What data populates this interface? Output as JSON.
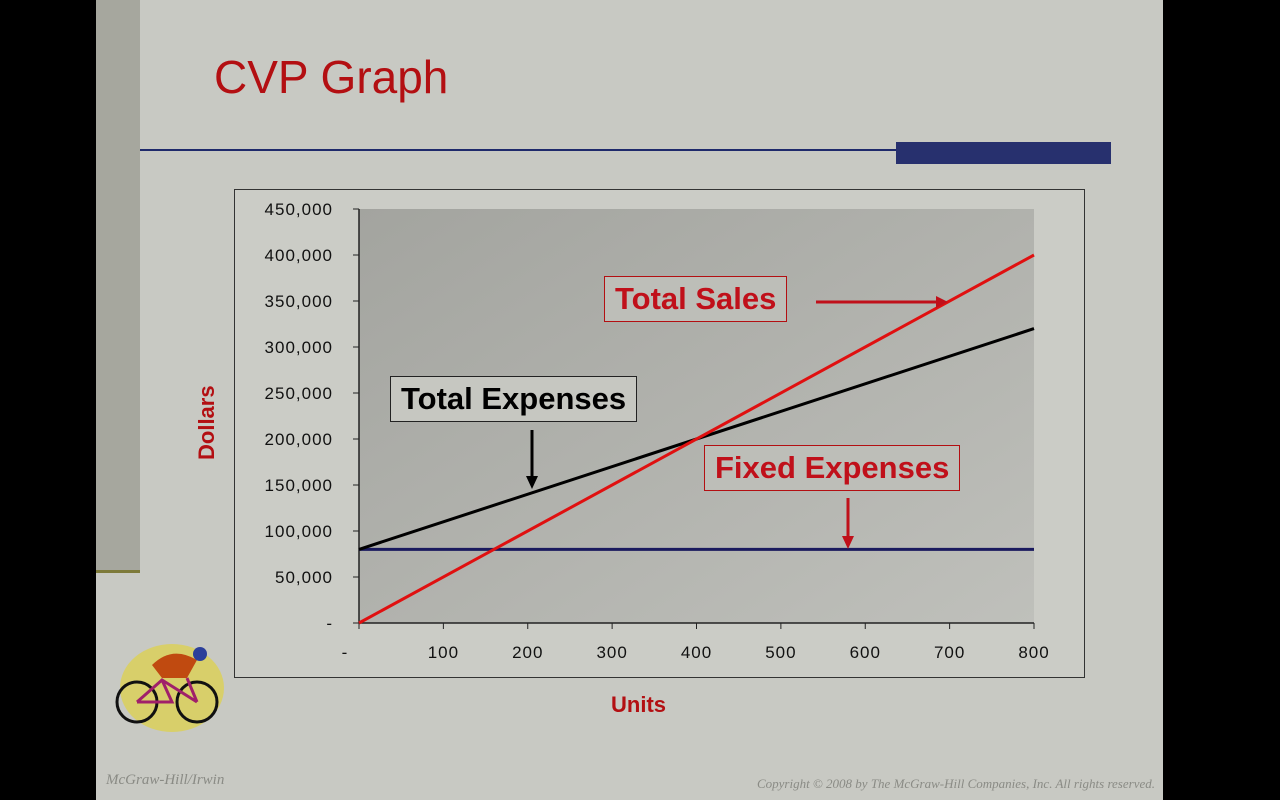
{
  "slide": {
    "title": "CVP Graph",
    "footer_left": "McGraw-Hill/Irwin",
    "footer_right": "Copyright © 2008 by The McGraw-Hill Companies, Inc. All rights reserved."
  },
  "chart_data": {
    "type": "line",
    "title": "",
    "xlabel": "Units",
    "ylabel": "Dollars",
    "xlim": [
      0,
      800
    ],
    "ylim": [
      0,
      450000
    ],
    "x_ticks": [
      "-",
      "100",
      "200",
      "300",
      "400",
      "500",
      "600",
      "700",
      "800"
    ],
    "y_ticks": [
      "-",
      "50,000",
      "100,000",
      "150,000",
      "200,000",
      "250,000",
      "300,000",
      "350,000",
      "400,000",
      "450,000"
    ],
    "x": [
      0,
      800
    ],
    "series": [
      {
        "name": "Total Sales",
        "values": [
          0,
          400000
        ],
        "color": "#e01010"
      },
      {
        "name": "Total Expenses",
        "values": [
          80000,
          320000
        ],
        "color": "#000000"
      },
      {
        "name": "Fixed Expenses",
        "values": [
          80000,
          80000
        ],
        "color": "#1a1a5e"
      }
    ],
    "annotations": [
      "Total Sales",
      "Total Expenses",
      "Fixed Expenses"
    ],
    "grid": false,
    "legend": "none"
  }
}
